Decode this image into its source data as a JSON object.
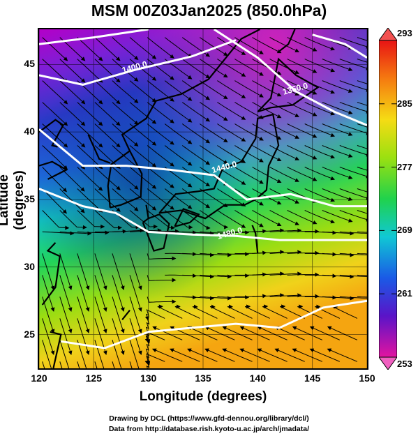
{
  "title": "MSM 00Z03Jan2025 (850.0hPa)",
  "axes": {
    "xlabel": "Longitude (degrees)",
    "ylabel": "Latitude  (degrees)",
    "x_ticks": [
      "120",
      "125",
      "130",
      "135",
      "140",
      "145",
      "150"
    ],
    "y_ticks": [
      "25",
      "30",
      "35",
      "40",
      "45"
    ],
    "x_range": [
      120,
      150
    ],
    "y_range": [
      22.5,
      47.6
    ]
  },
  "colorbar": {
    "ticks": [
      "293",
      "285",
      "277",
      "269",
      "261",
      "253"
    ],
    "min": 253,
    "max": 293,
    "units_hint": "temperature (K)"
  },
  "contours": [
    {
      "label": "1400.0",
      "lon": 128.8,
      "lat": 44.6
    },
    {
      "label": "1360.0",
      "lon": 143.5,
      "lat": 43.0
    },
    {
      "label": "1440.0",
      "lon": 137.0,
      "lat": 37.2
    },
    {
      "label": "1480.0",
      "lon": 137.5,
      "lat": 32.3
    }
  ],
  "credits": {
    "line1": "Drawing by DCL (https://www.gfd-dennou.org/library/dcl/)",
    "line2": "Data from http://database.rish.kyoto-u.ac.jp/arch/jmadata/"
  }
}
